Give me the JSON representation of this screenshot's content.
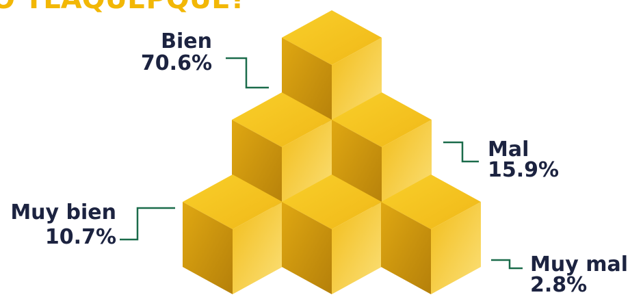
{
  "header": {
    "title": "O TLAQUEPQUE?"
  },
  "items": [
    {
      "label": "Bien",
      "value": "70.6%"
    },
    {
      "label": "Mal",
      "value": "15.9%"
    },
    {
      "label": "Muy bien",
      "value": "10.7%"
    },
    {
      "label": "Muy mal",
      "value": "2.8%"
    }
  ]
}
